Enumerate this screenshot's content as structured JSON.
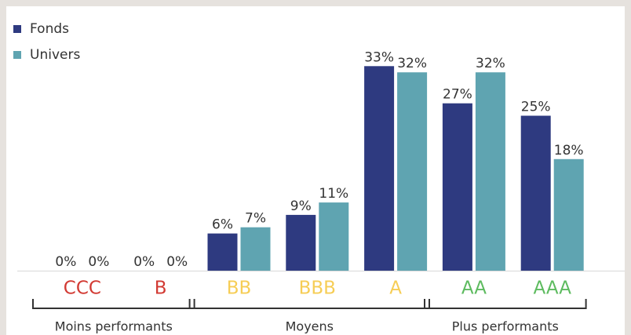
{
  "chart_data": {
    "type": "bar",
    "categories": [
      "CCC",
      "B",
      "BB",
      "BBB",
      "A",
      "AA",
      "AAA"
    ],
    "category_colors": [
      "#d23a33",
      "#d23a33",
      "#f6cd55",
      "#f6cd55",
      "#f6cd55",
      "#5dbb5f",
      "#5dbb5f"
    ],
    "series": [
      {
        "name": "Fonds",
        "color": "#2e3a80",
        "values": [
          0,
          0,
          6,
          9,
          33,
          27,
          25
        ],
        "value_labels": [
          "0%",
          "0%",
          "6%",
          "9%",
          "33%",
          "27%",
          "25%"
        ]
      },
      {
        "name": "Univers",
        "color": "#5fa4b1",
        "values": [
          0,
          0,
          7,
          11,
          32,
          32,
          18
        ],
        "value_labels": [
          "0%",
          "0%",
          "7%",
          "11%",
          "32%",
          "32%",
          "18%"
        ]
      }
    ],
    "groups": [
      "Moins performants",
      "Moyens",
      "Plus performants"
    ],
    "ylim": [
      0,
      40
    ],
    "legend": "top-left"
  }
}
